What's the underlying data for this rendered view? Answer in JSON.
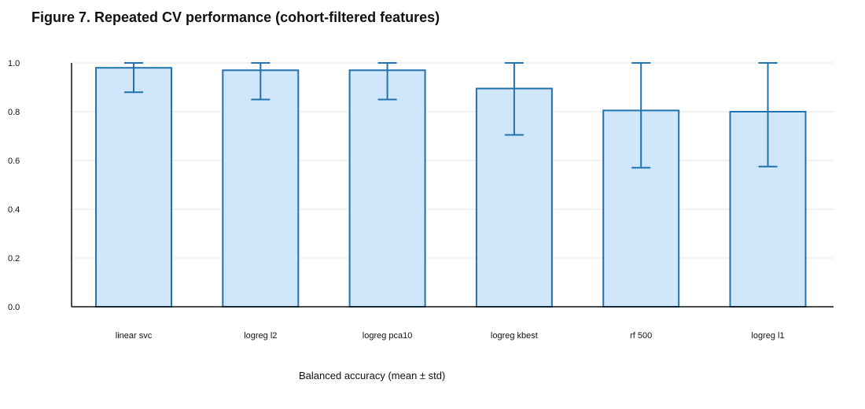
{
  "chart_data": {
    "type": "bar",
    "title": "Figure 7. Repeated CV performance (cohort-filtered features)",
    "xlabel": "Balanced accuracy (mean ± std)",
    "ylabel": "",
    "ylim": [
      0,
      1.0
    ],
    "yticks": [
      "0.0",
      "0.2",
      "0.4",
      "0.6",
      "0.8",
      "1.0"
    ],
    "grid": true,
    "categories": [
      "linear svc",
      "logreg l2",
      "logreg pca10",
      "logreg kbest",
      "rf 500",
      "logreg l1"
    ],
    "values": [
      0.98,
      0.97,
      0.97,
      0.895,
      0.805,
      0.8
    ],
    "err_low": [
      0.88,
      0.85,
      0.85,
      0.705,
      0.57,
      0.575
    ],
    "err_high": [
      1.0,
      1.0,
      1.0,
      1.0,
      1.0,
      1.0
    ]
  },
  "colors": {
    "bar_fill": "#d0e6fb",
    "bar_stroke": "#2272ad",
    "error_bar": "#2272ad"
  }
}
